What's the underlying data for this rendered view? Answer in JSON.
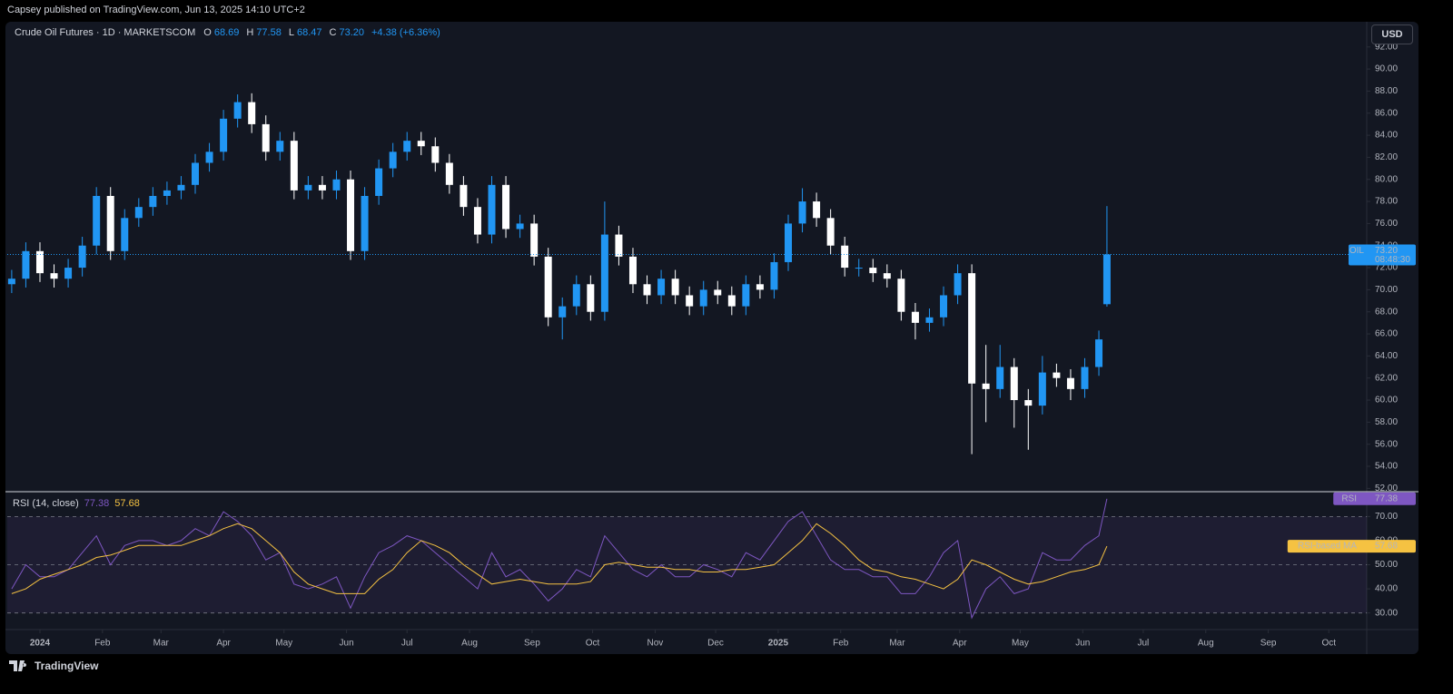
{
  "header": {
    "published": "Capsey published on TradingView.com, Jun 13, 2025 14:10 UTC+2",
    "currency": "USD",
    "legend": {
      "title": "Crude Oil Futures · 1D · MARKETSCOM",
      "ohlc": [
        {
          "key": "O",
          "value": "68.69"
        },
        {
          "key": "H",
          "value": "77.58"
        },
        {
          "key": "L",
          "value": "68.47"
        },
        {
          "key": "C",
          "value": "73.20"
        }
      ],
      "change": "+4.38 (+6.36%)"
    },
    "price_tag": {
      "symbol": "OIL",
      "price": "73.20",
      "countdown": "08:48:30"
    },
    "rsi_legend": {
      "title": "RSI (14, close)",
      "rsi": "77.38",
      "ma": "57.68"
    }
  },
  "footer": {
    "brand": "TradingView"
  },
  "chart_data": [
    {
      "type": "candlestick",
      "up_color": "#2196f3",
      "down_color": "#ffffff",
      "x": [
        -14,
        -7,
        0,
        7,
        14,
        21,
        28,
        35,
        42,
        49,
        56,
        63,
        70,
        77,
        84,
        91,
        98,
        105,
        112,
        119,
        126,
        133,
        140,
        147,
        154,
        161,
        168,
        175,
        182,
        189,
        196,
        203,
        210,
        217,
        224,
        231,
        238,
        245,
        252,
        259,
        266,
        273,
        280,
        287,
        294,
        301,
        308,
        315,
        322,
        329,
        336,
        343,
        350,
        357,
        364,
        371,
        378,
        385,
        392,
        399,
        406,
        413,
        420,
        427,
        434,
        441,
        448,
        455,
        462,
        469,
        476,
        483,
        490,
        497,
        504,
        511,
        518,
        525,
        529
      ],
      "open": [
        70.5,
        71,
        73.5,
        71.5,
        71,
        72,
        74,
        78.5,
        73.5,
        76.5,
        77.5,
        78.5,
        79,
        79.5,
        81.5,
        82.5,
        85.5,
        87,
        85,
        82.5,
        83.5,
        79,
        79.5,
        79,
        80,
        73.5,
        78.5,
        81,
        82.5,
        83.5,
        83,
        81.5,
        79.5,
        77.5,
        75,
        79.5,
        75.5,
        76,
        73,
        67.5,
        68.5,
        70.5,
        68,
        75,
        73,
        70.5,
        69.5,
        71,
        69.5,
        68.5,
        70,
        69.5,
        68.5,
        70.5,
        70,
        72.5,
        76,
        78,
        76.5,
        74,
        72,
        72,
        71.5,
        71,
        68,
        67,
        67.5,
        69.5,
        71.5,
        61.5,
        61,
        63,
        60,
        59.5,
        62.5,
        62,
        61,
        63,
        68.69
      ],
      "high": [
        71.8,
        74.3,
        74.3,
        72.3,
        72.8,
        74.8,
        79.3,
        79.3,
        77.3,
        78.3,
        79.3,
        79.8,
        80.3,
        82.3,
        83.3,
        86.3,
        87.7,
        87.8,
        85.8,
        84.3,
        84.3,
        80.3,
        80.3,
        80.8,
        80.8,
        79.3,
        81.8,
        83.3,
        84.3,
        84.3,
        83.8,
        82.3,
        80.3,
        78.3,
        80.3,
        80.3,
        76.8,
        76.8,
        73.8,
        69.3,
        71.3,
        71.3,
        78,
        75.8,
        73.8,
        71.3,
        71.8,
        71.8,
        70.3,
        70.8,
        70.8,
        70.3,
        71.3,
        71.3,
        73.3,
        76.8,
        79.2,
        78.8,
        77.3,
        74.8,
        72.8,
        72.8,
        72.3,
        71.8,
        68.8,
        68.3,
        70.3,
        72.3,
        72.3,
        65,
        65,
        63.8,
        61,
        64,
        63.3,
        62.8,
        63.8,
        66.3,
        77.58
      ],
      "low": [
        69.7,
        70.2,
        70.7,
        70.2,
        70.2,
        71.2,
        73.2,
        72.7,
        72.7,
        75.7,
        76.7,
        77.7,
        78.2,
        78.7,
        80.7,
        81.7,
        84.7,
        84.2,
        81.7,
        81.7,
        78.2,
        78.2,
        78.2,
        78.2,
        72.7,
        72.7,
        77.7,
        80.2,
        81.7,
        82.2,
        80.7,
        78.7,
        76.7,
        74.2,
        74.2,
        74.7,
        74.7,
        72.2,
        66.7,
        65.5,
        67.7,
        67.2,
        67.2,
        72.2,
        69.7,
        68.7,
        68.7,
        68.7,
        67.7,
        67.7,
        68.7,
        67.7,
        67.7,
        69.2,
        69.2,
        71.7,
        75.2,
        75.7,
        73.2,
        71.2,
        71.2,
        70.7,
        70.2,
        67.2,
        65.5,
        66.2,
        66.7,
        68.7,
        55.1,
        58,
        60.2,
        57.5,
        55.5,
        58.7,
        61.2,
        60,
        60.2,
        62.2,
        68.47
      ],
      "close": [
        71,
        73.5,
        71.5,
        71,
        72,
        74,
        78.5,
        73.5,
        76.5,
        77.5,
        78.5,
        79,
        79.5,
        81.5,
        82.5,
        85.5,
        87,
        85,
        82.5,
        83.5,
        79,
        79.5,
        79,
        80,
        73.5,
        78.5,
        81,
        82.5,
        83.5,
        83,
        81.5,
        79.5,
        77.5,
        75,
        79.5,
        75.5,
        76,
        73,
        67.5,
        68.5,
        70.5,
        68,
        75,
        73,
        70.5,
        69.5,
        71,
        69.5,
        68.5,
        70,
        69.5,
        68.5,
        70.5,
        70,
        72.5,
        76,
        78,
        76.5,
        74,
        72,
        72,
        71.5,
        71,
        68,
        67,
        67.5,
        69.5,
        71.5,
        61.5,
        61,
        63,
        60,
        59.5,
        62.5,
        62,
        61,
        63,
        65.5,
        73.2
      ],
      "xlim": [
        -16.2,
        657.8
      ],
      "ylim": [
        51.7,
        94.2
      ],
      "yticks": [
        {
          "value": 52,
          "label": "52.00"
        },
        {
          "value": 54,
          "label": "54.00"
        },
        {
          "value": 56,
          "label": "56.00"
        },
        {
          "value": 58,
          "label": "58.00"
        },
        {
          "value": 60,
          "label": "60.00"
        },
        {
          "value": 62,
          "label": "62.00"
        },
        {
          "value": 64,
          "label": "64.00"
        },
        {
          "value": 66,
          "label": "66.00"
        },
        {
          "value": 68,
          "label": "68.00"
        },
        {
          "value": 70,
          "label": "70.00"
        },
        {
          "value": 72,
          "label": "72.00"
        },
        {
          "value": 74,
          "label": "74.00"
        },
        {
          "value": 76,
          "label": "76.00"
        },
        {
          "value": 78,
          "label": "78.00"
        },
        {
          "value": 80,
          "label": "80.00"
        },
        {
          "value": 82,
          "label": "82.00"
        },
        {
          "value": 84,
          "label": "84.00"
        },
        {
          "value": 86,
          "label": "86.00"
        },
        {
          "value": 88,
          "label": "88.00"
        },
        {
          "value": 90,
          "label": "90.00"
        },
        {
          "value": 92,
          "label": "92.00"
        }
      ]
    },
    {
      "type": "line",
      "x": [
        -14,
        -7,
        0,
        7,
        14,
        21,
        28,
        35,
        42,
        49,
        56,
        63,
        70,
        77,
        84,
        91,
        98,
        105,
        112,
        119,
        126,
        133,
        140,
        147,
        154,
        161,
        168,
        175,
        182,
        189,
        196,
        203,
        210,
        217,
        224,
        231,
        238,
        245,
        252,
        259,
        266,
        273,
        280,
        287,
        294,
        301,
        308,
        315,
        322,
        329,
        336,
        343,
        350,
        357,
        364,
        371,
        378,
        385,
        392,
        399,
        406,
        413,
        420,
        427,
        434,
        441,
        448,
        455,
        462,
        469,
        476,
        483,
        490,
        497,
        504,
        511,
        518,
        525,
        529
      ],
      "series": [
        {
          "name": "RSI",
          "color": "#7e57c2",
          "values": [
            40,
            50,
            45,
            45,
            48,
            55,
            62,
            50,
            58,
            60,
            60,
            58,
            60,
            65,
            62,
            72,
            68,
            62,
            52,
            55,
            42,
            40,
            42,
            45,
            32,
            45,
            55,
            58,
            62,
            60,
            55,
            50,
            45,
            40,
            55,
            45,
            48,
            42,
            35,
            40,
            48,
            45,
            62,
            55,
            48,
            45,
            50,
            45,
            45,
            50,
            48,
            45,
            55,
            52,
            60,
            68,
            72,
            62,
            52,
            48,
            48,
            45,
            45,
            38,
            38,
            45,
            55,
            60,
            28,
            40,
            45,
            38,
            40,
            55,
            52,
            52,
            58,
            62,
            77.38
          ]
        },
        {
          "name": "RSI-based MA",
          "color": "#f5c242",
          "values": [
            38,
            40,
            44,
            46,
            48,
            50,
            53,
            54,
            56,
            58,
            58,
            58,
            58,
            60,
            62,
            65,
            67,
            65,
            60,
            55,
            47,
            42,
            40,
            38,
            38,
            38,
            44,
            48,
            55,
            60,
            58,
            55,
            50,
            46,
            42,
            43,
            44,
            43,
            42,
            42,
            42,
            43,
            50,
            51,
            50,
            49,
            49,
            48,
            48,
            47,
            47,
            48,
            48,
            49,
            50,
            55,
            60,
            67,
            63,
            58,
            52,
            48,
            47,
            45,
            44,
            42,
            40,
            44,
            52,
            50,
            47,
            44,
            42,
            43,
            45,
            47,
            48,
            50,
            57.68
          ]
        }
      ],
      "band": [
        30,
        70
      ],
      "hlines": [
        30,
        50,
        70
      ],
      "xlim": [
        -16.2,
        657.8
      ],
      "xticks": [
        {
          "value": 0,
          "label": "2024"
        },
        {
          "value": 31,
          "label": "Feb"
        },
        {
          "value": 60,
          "label": "Mar"
        },
        {
          "value": 91,
          "label": "Apr"
        },
        {
          "value": 121,
          "label": "May"
        },
        {
          "value": 152,
          "label": "Jun"
        },
        {
          "value": 182,
          "label": "Jul"
        },
        {
          "value": 213,
          "label": "Aug"
        },
        {
          "value": 244,
          "label": "Sep"
        },
        {
          "value": 274,
          "label": "Oct"
        },
        {
          "value": 305,
          "label": "Nov"
        },
        {
          "value": 335,
          "label": "Dec"
        },
        {
          "value": 366,
          "label": "2025"
        },
        {
          "value": 397,
          "label": "Feb"
        },
        {
          "value": 425,
          "label": "Mar"
        },
        {
          "value": 456,
          "label": "Apr"
        },
        {
          "value": 486,
          "label": "May"
        },
        {
          "value": 517,
          "label": "Jun"
        },
        {
          "value": 547,
          "label": "Jul"
        },
        {
          "value": 578,
          "label": "Aug"
        },
        {
          "value": 609,
          "label": "Sep"
        },
        {
          "value": 639,
          "label": "Oct"
        }
      ],
      "ylim": [
        23.1,
        80.3
      ],
      "yticks": [
        {
          "value": 30,
          "label": "30.00"
        },
        {
          "value": 40,
          "label": "40.00"
        },
        {
          "value": 50,
          "label": "50.00"
        },
        {
          "value": 60,
          "label": "60.00"
        },
        {
          "value": 70,
          "label": "70.00"
        }
      ]
    }
  ]
}
